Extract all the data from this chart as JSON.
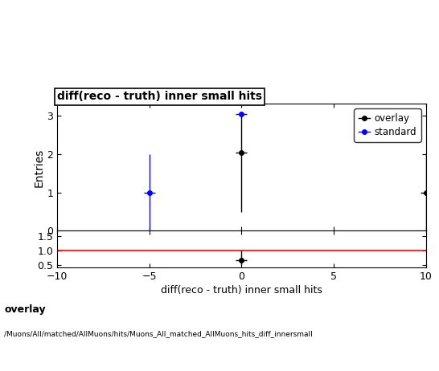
{
  "title": "diff(reco - truth) inner small hits",
  "xlabel": "diff(reco - truth) inner small hits",
  "ylabel_main": "Entries",
  "xlim": [
    -10,
    10
  ],
  "ylim_main": [
    0,
    3.3
  ],
  "ylim_ratio": [
    0.42,
    1.68
  ],
  "ratio_yticks": [
    0.5,
    1.0,
    1.5
  ],
  "overlay_points": {
    "x": [
      0,
      10
    ],
    "y": [
      2.04,
      1.0
    ],
    "xerr": [
      0.3,
      0.3
    ],
    "yerr_lo": [
      1.54,
      1.0
    ],
    "yerr_hi": [
      1.0,
      1.0
    ],
    "color": "#000000",
    "marker": "o",
    "markersize": 4
  },
  "standard_points": {
    "x": [
      -5,
      0
    ],
    "y": [
      1.0,
      3.03
    ],
    "xerr": [
      0.3,
      0.3
    ],
    "yerr_lo": [
      1.0,
      0.03
    ],
    "yerr_hi": [
      1.0,
      0.03
    ],
    "color": "#0000ff",
    "marker": "o",
    "markersize": 4
  },
  "ratio_points": {
    "x": [
      0
    ],
    "y": [
      0.666
    ],
    "xerr": [
      0.3
    ],
    "yerr_lo": [
      0.17
    ],
    "yerr_hi": [
      0.33
    ],
    "color": "#000000",
    "marker": "o",
    "markersize": 4
  },
  "ratio_hline": 1.0,
  "ratio_hline_color": "#ff0000",
  "footer_line1": "overlay",
  "footer_line2": "/Muons/All/matched/AllMuons/hits/Muons_All_matched_AllMuons_hits_diff_innersmall",
  "background_color": "#ffffff"
}
